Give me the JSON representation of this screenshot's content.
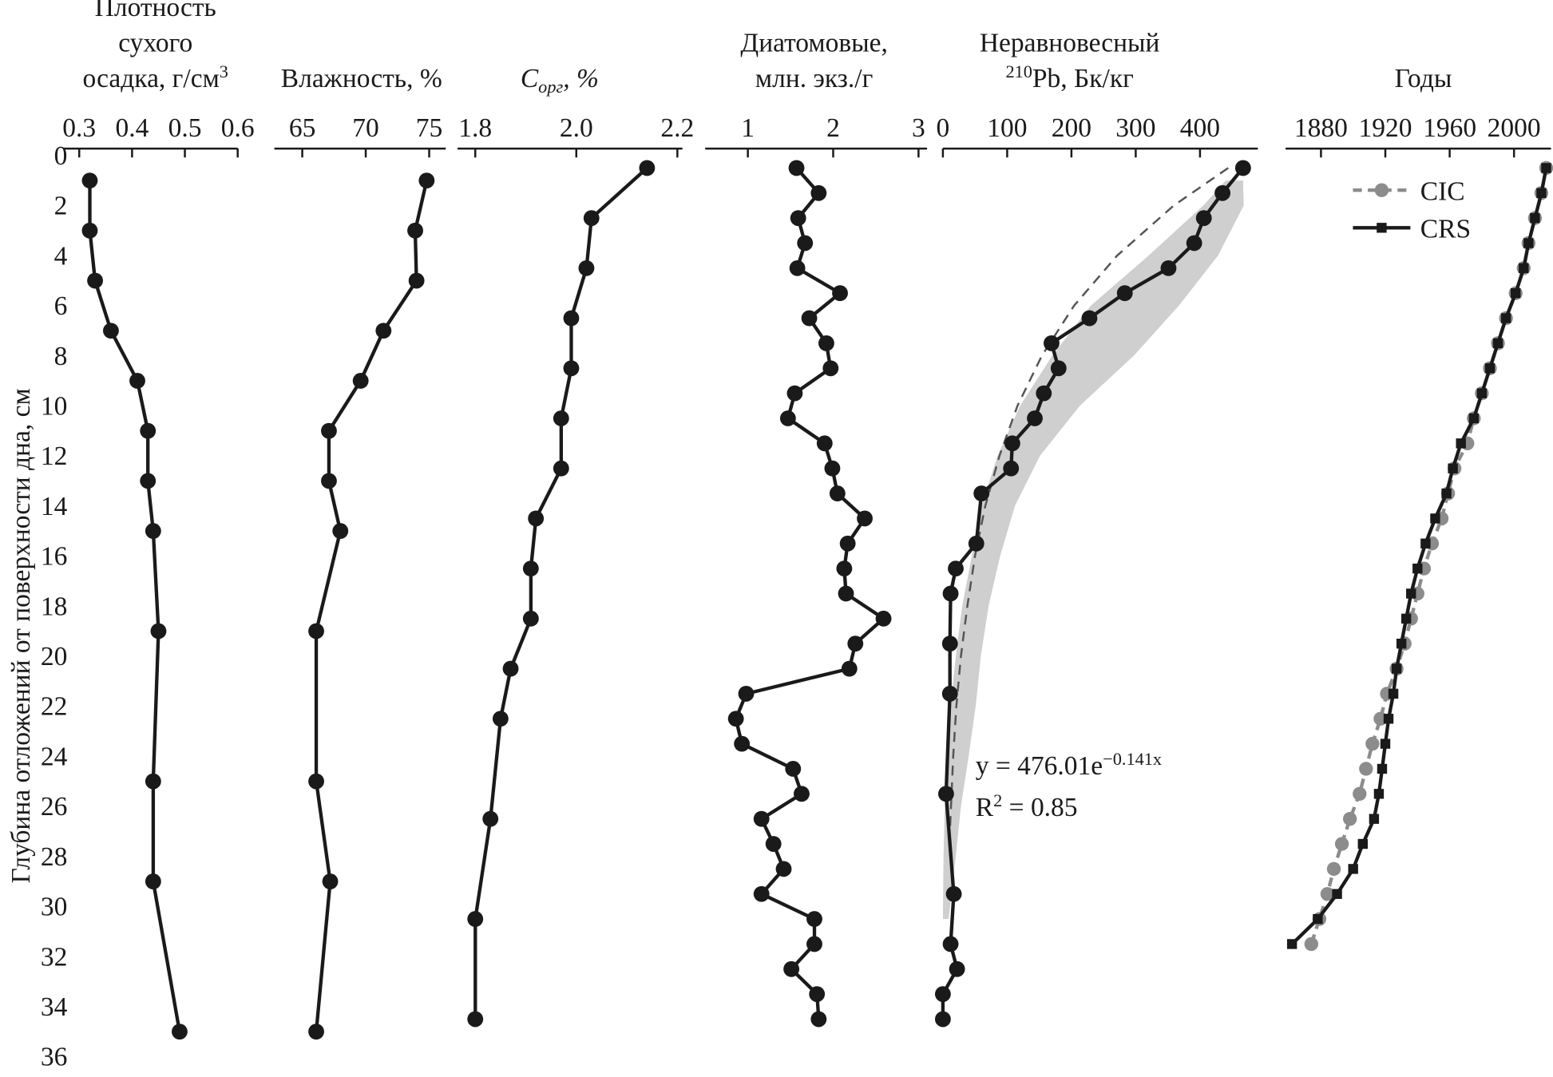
{
  "chart_data": [
    {
      "type": "line",
      "title": [
        [
          "Плотность"
        ],
        [
          "сухого"
        ],
        [
          "осадка, г/см",
          {
            "sup": "3"
          }
        ]
      ],
      "y_label": "Глубина отложений от поверхности дна, см",
      "ylim": [
        0,
        36
      ],
      "yticks": [
        0,
        2,
        4,
        6,
        8,
        10,
        12,
        14,
        16,
        18,
        20,
        22,
        24,
        26,
        28,
        30,
        32,
        34,
        36
      ],
      "xlim": [
        0.27,
        0.6
      ],
      "xticks": [
        0.3,
        0.4,
        0.5,
        0.6
      ],
      "series": [
        {
          "color": "#1a1a1a",
          "marker": "circle",
          "depth": [
            1,
            3,
            5,
            7,
            9,
            11,
            13,
            15,
            19,
            25,
            29,
            35
          ],
          "values": [
            0.32,
            0.32,
            0.33,
            0.36,
            0.41,
            0.43,
            0.43,
            0.44,
            0.45,
            0.44,
            0.44,
            0.49
          ]
        }
      ]
    },
    {
      "type": "line",
      "title": [
        [
          "Влажность, %"
        ]
      ],
      "xlim": [
        62.8,
        76.3
      ],
      "xticks": [
        65,
        70,
        75
      ],
      "series": [
        {
          "color": "#1a1a1a",
          "marker": "circle",
          "depth": [
            1,
            3,
            5,
            7,
            9,
            11,
            13,
            15,
            19,
            25,
            29,
            35
          ],
          "values": [
            74.8,
            73.9,
            74.0,
            71.4,
            69.6,
            67.1,
            67.1,
            68.0,
            66.1,
            66.1,
            67.2,
            66.1
          ]
        }
      ]
    },
    {
      "type": "line",
      "title": [
        [
          "C",
          {
            "sub": "орг"
          },
          ", %"
        ]
      ],
      "xlim": [
        1.765,
        2.21
      ],
      "xticks": [
        1.8,
        {
          "value": 2,
          "label": "2.0"
        },
        2.2
      ],
      "series": [
        {
          "color": "#1a1a1a",
          "marker": "circle",
          "depth": [
            0.5,
            2.5,
            4.5,
            6.5,
            8.5,
            10.5,
            12.5,
            14.5,
            16.5,
            18.5,
            20.5,
            22.5,
            26.5,
            30.5,
            34.5
          ],
          "values": [
            2.14,
            2.03,
            2.02,
            1.99,
            1.99,
            1.97,
            1.97,
            1.92,
            1.91,
            1.91,
            1.87,
            1.85,
            1.83,
            1.8,
            1.8
          ]
        }
      ]
    },
    {
      "type": "line",
      "title": [
        [
          "Диатомовые,"
        ],
        [
          "млн. экз./г"
        ]
      ],
      "xlim": [
        0.5,
        3.1
      ],
      "xticks": [
        1,
        2,
        3
      ],
      "series": [
        {
          "color": "#1a1a1a",
          "marker": "circle",
          "depth": [
            0.5,
            1.5,
            2.5,
            3.5,
            4.5,
            5.5,
            6.5,
            7.5,
            8.5,
            9.5,
            10.5,
            11.5,
            12.5,
            13.5,
            14.5,
            15.5,
            16.5,
            17.5,
            18.5,
            19.5,
            20.5,
            21.5,
            22.5,
            23.5,
            24.5,
            25.5,
            26.5,
            27.5,
            28.5,
            29.5,
            30.5,
            31.5,
            32.5,
            33.5,
            34.5
          ],
          "values": [
            1.57,
            1.83,
            1.59,
            1.67,
            1.58,
            2.08,
            1.72,
            1.92,
            1.97,
            1.55,
            1.47,
            1.9,
            1.99,
            2.05,
            2.37,
            2.17,
            2.13,
            2.15,
            2.59,
            2.26,
            2.19,
            0.98,
            0.86,
            0.93,
            1.53,
            1.63,
            1.16,
            1.3,
            1.42,
            1.16,
            1.78,
            1.78,
            1.51,
            1.81,
            1.83
          ]
        }
      ]
    },
    {
      "type": "line",
      "title": [
        [
          "Неравновесный"
        ],
        [
          {
            "sup": "210"
          },
          "Pb, Бк/кг"
        ]
      ],
      "xlim": [
        0,
        490
      ],
      "xticks": [
        0,
        100,
        200,
        300,
        400
      ],
      "band": {
        "color": "#cfcfcf",
        "depth": [
          1,
          2,
          4,
          6,
          8,
          10,
          12,
          14,
          16,
          18,
          20,
          22,
          24,
          26,
          28,
          30.5
        ],
        "lower": [
          440,
          405,
          320,
          230,
          170,
          120,
          85,
          60,
          45,
          30,
          20,
          12,
          6,
          3,
          1,
          0
        ],
        "upper": [
          467,
          468,
          428,
          367,
          297,
          213,
          151,
          112,
          89,
          71,
          59,
          51,
          40,
          28,
          20,
          9
        ]
      },
      "fit": {
        "color": "#555555",
        "style": "dashed",
        "depth": [
          0.5,
          2,
          4,
          6,
          8,
          10,
          12,
          14,
          16,
          18,
          20,
          22,
          24,
          27
        ],
        "values": [
          444,
          359,
          271,
          204,
          154,
          116,
          88,
          66,
          50,
          38,
          28,
          21,
          16,
          11
        ]
      },
      "series": [
        {
          "color": "#1a1a1a",
          "marker": "circle",
          "depth": [
            0.5,
            1.5,
            2.5,
            3.5,
            4.5,
            5.5,
            6.5,
            7.5,
            8.5,
            9.5,
            10.5,
            11.5,
            12.5,
            13.5,
            15.5,
            16.5,
            17.5,
            19.5,
            21.5,
            25.5,
            29.5,
            31.5,
            32.5,
            33.5,
            34.5
          ],
          "values": [
            467,
            435,
            406,
            391,
            351,
            283,
            228,
            169,
            180,
            157,
            143,
            108,
            106,
            60,
            52,
            20,
            12,
            11,
            11,
            5,
            17,
            12,
            22,
            0,
            0
          ]
        }
      ],
      "annotations": [
        [
          "y = 476.01e",
          {
            "sup": "−0.141x"
          }
        ],
        [
          "R",
          {
            "sup": "2"
          },
          " = 0.85"
        ]
      ]
    },
    {
      "type": "line",
      "title": [
        [
          "Годы"
        ]
      ],
      "xlim": [
        1858,
        2023
      ],
      "xticks": [
        1880,
        1920,
        1960,
        2000
      ],
      "legend": "upper right",
      "series": [
        {
          "name": "CIC",
          "color": "#8c8c8c",
          "marker": "circle",
          "style": "dashed",
          "depth": [
            0.5,
            1.5,
            2.5,
            3.5,
            4.5,
            5.5,
            6.5,
            7.5,
            8.5,
            9.5,
            10.5,
            11.5,
            12.5,
            13.5,
            14.5,
            15.5,
            16.5,
            17.5,
            18.5,
            19.5,
            20.5,
            21.5,
            22.5,
            23.5,
            24.5,
            25.5,
            26.5,
            27.5,
            28.5,
            29.5,
            30.5,
            31.5
          ],
          "values": [
            2020,
            2017,
            2013,
            2009,
            2006,
            2001,
            1995,
            1990,
            1985,
            1980,
            1975,
            1971,
            1963,
            1959,
            1955,
            1949,
            1944,
            1940,
            1936,
            1932,
            1927,
            1921,
            1917,
            1912,
            1908,
            1904,
            1898,
            1893,
            1888,
            1884,
            1879,
            1874
          ]
        },
        {
          "name": "CRS",
          "color": "#1a1a1a",
          "marker": "square",
          "style": "solid",
          "depth": [
            0.5,
            1.5,
            2.5,
            3.5,
            4.5,
            5.5,
            6.5,
            7.5,
            8.5,
            9.5,
            10.5,
            11.5,
            12.5,
            13.5,
            14.5,
            15.5,
            16.5,
            17.5,
            18.5,
            19.5,
            20.5,
            21.5,
            22.5,
            23.5,
            24.5,
            25.5,
            26.5,
            27.5,
            28.5,
            29.5,
            30.5,
            31.5
          ],
          "values": [
            2020,
            2017,
            2013,
            2009,
            2006,
            2001,
            1995,
            1990,
            1985,
            1980,
            1975,
            1967,
            1962,
            1958,
            1951,
            1945,
            1940,
            1936,
            1933,
            1930,
            1927,
            1925,
            1922,
            1920,
            1918,
            1916,
            1913,
            1906,
            1900,
            1890,
            1878,
            1862
          ]
        }
      ]
    }
  ]
}
